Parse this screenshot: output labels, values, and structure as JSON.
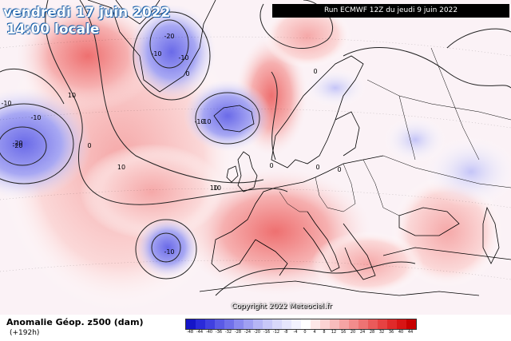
{
  "header": {
    "date_label": "vendredi 17 juin 2022",
    "time_label": "14:00 locale",
    "run_label": "Run ECMWF 12Z du jeudi 9 juin 2022"
  },
  "copyright": "Copyright 2022 Meteociel.fr",
  "legend": {
    "title": "Anomalie Géop. z500 (dam)",
    "subtitle": "(+192h)",
    "ticks": [
      "-48",
      "-44",
      "-40",
      "-36",
      "-32",
      "-28",
      "-24",
      "-20",
      "-16",
      "-12",
      "-8",
      "-4",
      "0",
      "4",
      "8",
      "12",
      "16",
      "20",
      "24",
      "28",
      "32",
      "36",
      "40",
      "44"
    ],
    "colors": [
      "#1515c8",
      "#2a2ad9",
      "#4040e0",
      "#5a5ae6",
      "#7070ea",
      "#8a8aef",
      "#a0a0f2",
      "#b6b6f5",
      "#c8c8f8",
      "#d8d8fa",
      "#e6e6fc",
      "#f2f2fe",
      "#ffffff",
      "#fde8e8",
      "#fbd3d3",
      "#f8bcbc",
      "#f5a4a4",
      "#f28c8c",
      "#ee7373",
      "#ea5a5a",
      "#e64242",
      "#e02a2a",
      "#d81515",
      "#c80000"
    ]
  },
  "contour_labels": [
    "-20",
    "-10",
    "-10",
    "-20",
    "-10",
    "-10",
    "0",
    "10",
    "10",
    "-10",
    "-20",
    "-10",
    "10",
    "0",
    "0",
    "0",
    "-10",
    "10",
    "0",
    "0"
  ],
  "colors": {
    "positive": "#f4a6a6",
    "negative": "#9b9bf0",
    "coast": "#000000",
    "title_outline": "#1a5fa8"
  }
}
